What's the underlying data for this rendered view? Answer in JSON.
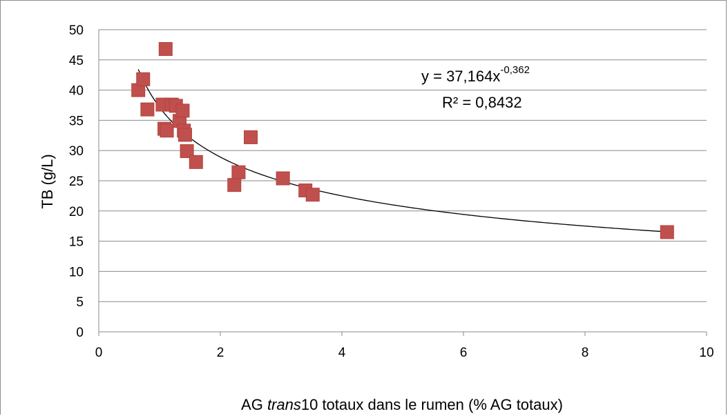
{
  "chart_data": {
    "type": "scatter",
    "title": "",
    "xlabel_parts": [
      "AG ",
      "trans",
      "10 totaux dans le rumen (% AG  totaux)"
    ],
    "ylabel": "TB (g/L)",
    "xlim": [
      0,
      10
    ],
    "ylim": [
      0,
      50
    ],
    "x_ticks": [
      "0",
      "2",
      "4",
      "6",
      "8",
      "10"
    ],
    "y_ticks": [
      "0",
      "5",
      "10",
      "15",
      "20",
      "25",
      "30",
      "35",
      "40",
      "45",
      "50"
    ],
    "grid": "horizontal",
    "legend": "none",
    "marker_color": "#c0504d",
    "trendline": {
      "type": "power",
      "a": 37.164,
      "b": -0.362,
      "x_range": [
        0.65,
        9.35
      ],
      "equation_prefix": "y = 37,164x",
      "equation_exponent": "-0,362",
      "r2_text": "R² = 0,8432"
    },
    "points": [
      {
        "x": 0.65,
        "y": 40.0
      },
      {
        "x": 0.73,
        "y": 41.8
      },
      {
        "x": 0.8,
        "y": 36.8
      },
      {
        "x": 1.05,
        "y": 37.6
      },
      {
        "x": 1.08,
        "y": 33.6
      },
      {
        "x": 1.1,
        "y": 46.8
      },
      {
        "x": 1.12,
        "y": 33.3
      },
      {
        "x": 1.2,
        "y": 37.6
      },
      {
        "x": 1.27,
        "y": 37.4
      },
      {
        "x": 1.33,
        "y": 34.9
      },
      {
        "x": 1.38,
        "y": 36.6
      },
      {
        "x": 1.4,
        "y": 33.3
      },
      {
        "x": 1.42,
        "y": 32.6
      },
      {
        "x": 1.45,
        "y": 29.9
      },
      {
        "x": 1.6,
        "y": 28.1
      },
      {
        "x": 2.23,
        "y": 24.3
      },
      {
        "x": 2.3,
        "y": 26.4
      },
      {
        "x": 2.5,
        "y": 32.2
      },
      {
        "x": 3.03,
        "y": 25.4
      },
      {
        "x": 3.4,
        "y": 23.4
      },
      {
        "x": 3.52,
        "y": 22.7
      },
      {
        "x": 9.35,
        "y": 16.5
      }
    ]
  }
}
